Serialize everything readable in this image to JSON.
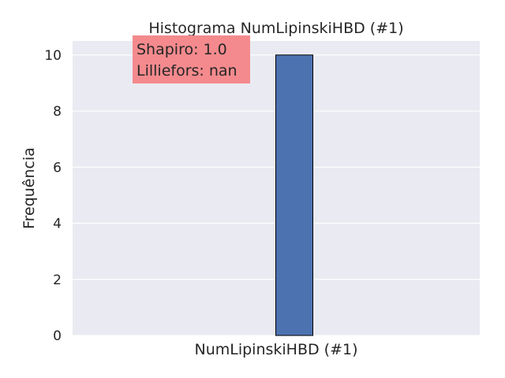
{
  "chart_data": {
    "type": "bar",
    "title": "Histograma NumLipinskiHBD (#1)",
    "xlabel": "NumLipinskiHBD (#1)",
    "ylabel": "Frequência",
    "categories": [
      "NumLipinskiHBD (#1)"
    ],
    "values": [
      10
    ],
    "ylim": [
      0,
      10.5
    ],
    "yticks": [
      0,
      2,
      4,
      6,
      8,
      10
    ],
    "grid": true,
    "annotations": [
      "Shapiro: 1.0",
      "Lilliefors: nan"
    ],
    "colors": {
      "background": "#EAEAF2",
      "bar": "#4C72B0",
      "bar_edge": "#000000",
      "grid": "#FFFFFF",
      "annotation_box": "#F48A8D"
    }
  }
}
